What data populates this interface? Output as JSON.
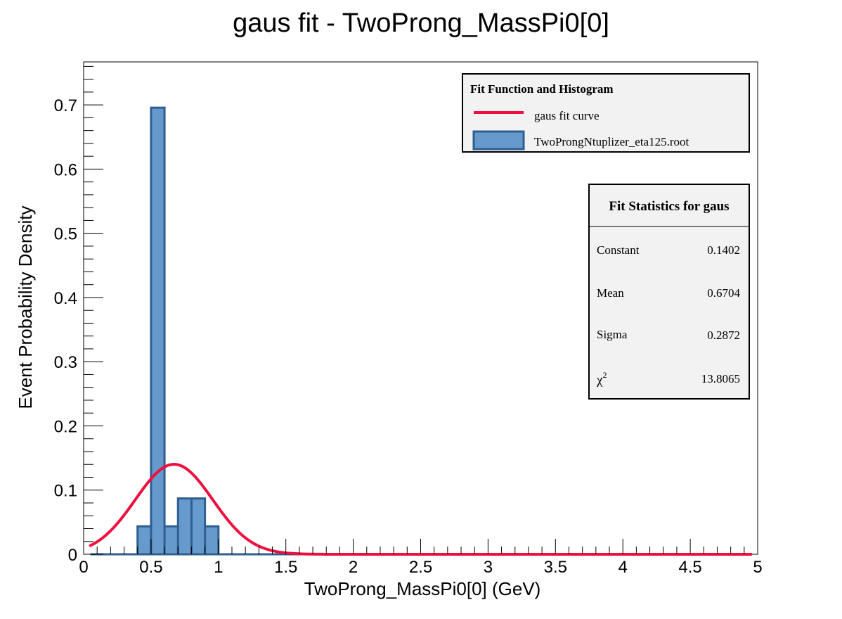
{
  "chart_data": {
    "type": "bar",
    "title": "gaus fit - TwoProng_MassPi0[0]",
    "xlabel": "TwoProng_MassPi0[0] (GeV)",
    "ylabel": "Event Probability Density",
    "xlim": [
      0,
      5
    ],
    "ylim": [
      0,
      0.767
    ],
    "x_ticks": [
      0,
      0.5,
      1,
      1.5,
      2,
      2.5,
      3,
      3.5,
      4,
      4.5,
      5
    ],
    "x_tick_labels": [
      "0",
      "0.5",
      "1",
      "1.5",
      "2",
      "2.5",
      "3",
      "3.5",
      "4",
      "4.5",
      "5"
    ],
    "y_ticks": [
      0,
      0.1,
      0.2,
      0.3,
      0.4,
      0.5,
      0.6,
      0.7
    ],
    "y_tick_labels": [
      "0",
      "0.1",
      "0.2",
      "0.3",
      "0.4",
      "0.5",
      "0.6",
      "0.7"
    ],
    "grid": false,
    "bin_width": 0.1,
    "bins": [
      {
        "x0": 0.4,
        "x1": 0.5,
        "value": 0.0435
      },
      {
        "x0": 0.5,
        "x1": 0.6,
        "value": 0.6957
      },
      {
        "x0": 0.6,
        "x1": 0.7,
        "value": 0.0435
      },
      {
        "x0": 0.7,
        "x1": 0.8,
        "value": 0.087
      },
      {
        "x0": 0.8,
        "x1": 0.9,
        "value": 0.087
      },
      {
        "x0": 0.9,
        "x1": 1.0,
        "value": 0.0435
      }
    ],
    "fit": {
      "function": "gaus",
      "constant": 0.1402,
      "mean": 0.6704,
      "sigma": 0.2872,
      "x_range": [
        0.05,
        4.95
      ]
    },
    "series": [
      {
        "name": "gaus fit curve",
        "kind": "line",
        "color": "#ef0f3f"
      },
      {
        "name": "TwoProngNtuplizer_eta125.root",
        "kind": "histogram",
        "fill": "#6699cc",
        "stroke": "#2e5f8f"
      }
    ],
    "legend": {
      "title": "Fit Function and Histogram",
      "placement": "top-right"
    },
    "stats_box": {
      "title": "Fit Statistics for gaus",
      "placement": "right",
      "rows": [
        {
          "label": "Constant",
          "value": "0.1402"
        },
        {
          "label": "Mean",
          "value": "0.6704"
        },
        {
          "label": "Sigma",
          "value": "0.2872"
        },
        {
          "label": "χ",
          "label_sup": "2",
          "value": "13.8065"
        }
      ]
    }
  }
}
